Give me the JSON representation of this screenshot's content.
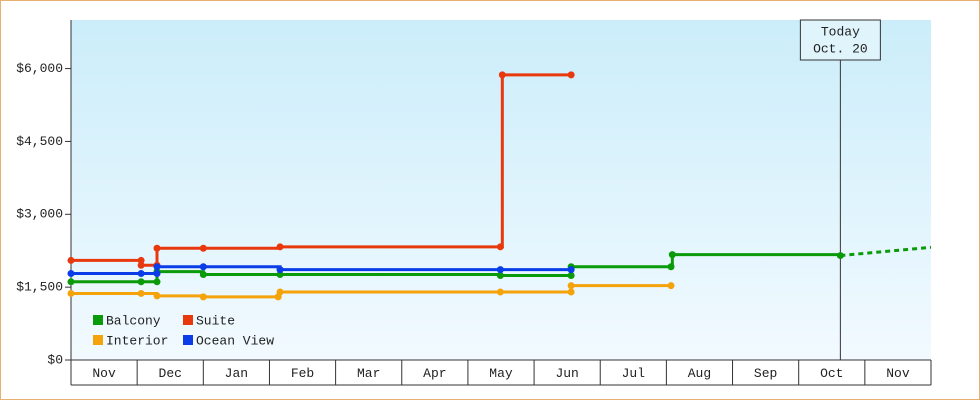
{
  "chart_data": {
    "type": "step-line",
    "categories": [
      "Nov",
      "Dec",
      "Jan",
      "Feb",
      "Mar",
      "Apr",
      "May",
      "Jun",
      "Jul",
      "Aug",
      "Sep",
      "Oct",
      "Nov"
    ],
    "xlim": [
      0,
      13
    ],
    "ylim": [
      0,
      7000
    ],
    "yticks": [
      {
        "value": 0,
        "label": "$0"
      },
      {
        "value": 1500,
        "label": "$1,500"
      },
      {
        "value": 3000,
        "label": "$3,000"
      },
      {
        "value": 4500,
        "label": "$4,500"
      },
      {
        "value": 6000,
        "label": "$6,000"
      }
    ],
    "series": [
      {
        "name": "Balcony",
        "color": "#0a9a0a",
        "x": [
          0,
          1.06,
          1.3,
          1.3,
          2.0,
          3.16,
          6.49,
          7.56,
          7.56,
          9.07,
          9.09,
          11.63
        ],
        "values": [
          1610,
          1610,
          1610,
          1820,
          1760,
          1760,
          1740,
          1740,
          1920,
          1920,
          2170,
          2150
        ],
        "forecast": {
          "x": [
            11.63,
            13
          ],
          "values": [
            2150,
            2320
          ]
        }
      },
      {
        "name": "Suite",
        "color": "#e8380d",
        "x": [
          0,
          1.06,
          1.06,
          1.3,
          1.3,
          2.0,
          3.16,
          6.49,
          6.52,
          7.56
        ],
        "values": [
          2050,
          2050,
          1950,
          1950,
          2300,
          2300,
          2330,
          2330,
          5870,
          5870
        ]
      },
      {
        "name": "Interior",
        "color": "#f5a30a",
        "x": [
          0,
          1.06,
          1.3,
          2.0,
          3.13,
          3.16,
          6.49,
          7.56,
          7.56,
          9.07
        ],
        "values": [
          1370,
          1370,
          1320,
          1300,
          1300,
          1400,
          1400,
          1400,
          1530,
          1530
        ]
      },
      {
        "name": "Ocean View",
        "color": "#0a3de8",
        "x": [
          0,
          1.06,
          1.3,
          1.3,
          2.0,
          3.16,
          6.49,
          7.56
        ],
        "values": [
          1780,
          1780,
          1780,
          1920,
          1920,
          1860,
          1860,
          1860
        ]
      }
    ],
    "annotation": {
      "x": 11.63,
      "label": [
        "Today",
        "Oct. 20"
      ]
    }
  }
}
